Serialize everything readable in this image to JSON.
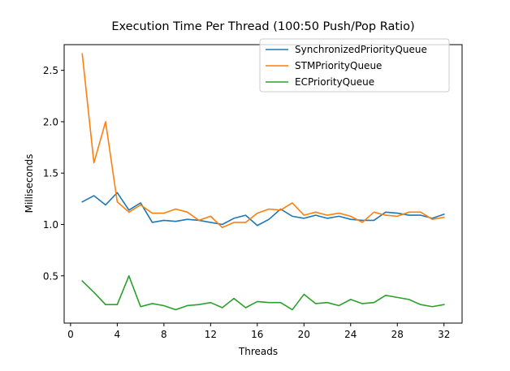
{
  "chart_data": {
    "type": "line",
    "title": "Execution Time Per Thread (100:50 Push/Pop Ratio)",
    "xlabel": "Threads",
    "ylabel": "Milliseconds",
    "xlim": [
      -0.55,
      33.55
    ],
    "ylim": [
      0.04,
      2.75
    ],
    "xticks": [
      0,
      4,
      8,
      12,
      16,
      20,
      24,
      28,
      32
    ],
    "xtick_labels": [
      "0",
      "4",
      "8",
      "12",
      "16",
      "20",
      "24",
      "28",
      "32"
    ],
    "yticks": [
      0.5,
      1.0,
      1.5,
      2.0,
      2.5
    ],
    "ytick_labels": [
      "0.5",
      "1.0",
      "1.5",
      "2.0",
      "2.5"
    ],
    "grid": false,
    "legend_position": "top-right",
    "x": [
      1,
      2,
      3,
      4,
      5,
      6,
      7,
      8,
      9,
      10,
      11,
      12,
      13,
      14,
      15,
      16,
      17,
      18,
      19,
      20,
      21,
      22,
      23,
      24,
      25,
      26,
      27,
      28,
      29,
      30,
      31,
      32
    ],
    "series": [
      {
        "name": "SynchronizedPriorityQueue",
        "color": "#1f77b4",
        "values": [
          1.22,
          1.28,
          1.19,
          1.31,
          1.14,
          1.21,
          1.02,
          1.04,
          1.03,
          1.05,
          1.04,
          1.02,
          1.0,
          1.06,
          1.09,
          0.99,
          1.05,
          1.15,
          1.08,
          1.06,
          1.09,
          1.06,
          1.08,
          1.05,
          1.04,
          1.04,
          1.12,
          1.11,
          1.09,
          1.09,
          1.06,
          1.1
        ]
      },
      {
        "name": "STMPriorityQueue",
        "color": "#ff7f0e",
        "values": [
          2.66,
          1.6,
          2.0,
          1.22,
          1.12,
          1.19,
          1.11,
          1.11,
          1.15,
          1.12,
          1.04,
          1.08,
          0.97,
          1.02,
          1.02,
          1.11,
          1.15,
          1.14,
          1.21,
          1.09,
          1.12,
          1.09,
          1.11,
          1.08,
          1.02,
          1.12,
          1.09,
          1.08,
          1.12,
          1.12,
          1.05,
          1.07
        ]
      },
      {
        "name": "ECPriorityQueue",
        "color": "#2ca02c",
        "values": [
          0.45,
          0.34,
          0.22,
          0.22,
          0.5,
          0.2,
          0.23,
          0.21,
          0.17,
          0.21,
          0.22,
          0.24,
          0.19,
          0.28,
          0.19,
          0.25,
          0.24,
          0.24,
          0.17,
          0.32,
          0.23,
          0.24,
          0.21,
          0.27,
          0.23,
          0.24,
          0.31,
          0.29,
          0.27,
          0.22,
          0.2,
          0.22
        ]
      }
    ]
  }
}
